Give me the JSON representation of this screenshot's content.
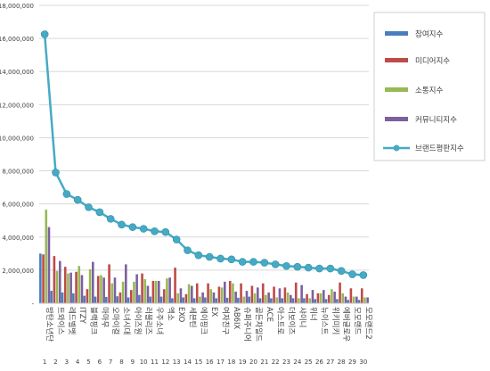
{
  "chart_data": {
    "type": "bar",
    "ylim": [
      0,
      18000000
    ],
    "y_ticks": [
      "-",
      "2,000,000",
      "4,000,000",
      "6,000,000",
      "8,000,000",
      "10,000,000",
      "12,000,000",
      "14,000,000",
      "16,000,000",
      "18,000,000"
    ],
    "y_tick_values": [
      0,
      2000000,
      4000000,
      6000000,
      8000000,
      10000000,
      12000000,
      14000000,
      16000000,
      18000000
    ],
    "grid": true,
    "legend_position": "right",
    "categories": [
      "방탄소년단",
      "트와이스",
      "레드벨벳",
      "ITZY",
      "블랙핑크",
      "마마무",
      "오마이걸",
      "소녀시대",
      "아이즈원",
      "러블리즈",
      "우주소녀",
      "엑소",
      "EXO",
      "세븐틴",
      "에이핑크",
      "EX",
      "여자친구",
      "AB6IX",
      "슈퍼주니어",
      "골든차일드",
      "ACE",
      "아스트로",
      "더보이즈",
      "샤이니",
      "위너",
      "뉴이스트",
      "위키미키",
      "에버글로우",
      "모모랜드",
      "모모랜드2"
    ],
    "indices": [
      "1",
      "2",
      "3",
      "4",
      "5",
      "6",
      "7",
      "8",
      "9",
      "10",
      "11",
      "12",
      "13",
      "14",
      "15",
      "16",
      "17",
      "18",
      "19",
      "20",
      "21",
      "22",
      "23",
      "24",
      "25",
      "26",
      "27",
      "28",
      "29",
      "30"
    ],
    "series": [
      {
        "name": "참여지수",
        "type": "bar",
        "color": "#4a7ebb",
        "values": [
          3000000,
          750000,
          650000,
          600000,
          450000,
          400000,
          380000,
          420000,
          350000,
          500000,
          400000,
          400000,
          300000,
          350000,
          300000,
          350000,
          300000,
          330000,
          330000,
          400000,
          300000,
          300000,
          300000,
          300000,
          300000,
          250000,
          250000,
          250000,
          200000,
          200000
        ]
      },
      {
        "name": "미디어지수",
        "type": "bar",
        "color": "#be4b48",
        "values": [
          2950000,
          2850000,
          2200000,
          1900000,
          850000,
          1650000,
          2350000,
          650000,
          800000,
          1800000,
          1350000,
          850000,
          2150000,
          550000,
          1200000,
          1200000,
          1000000,
          1350000,
          1200000,
          1050000,
          1200000,
          1000000,
          950000,
          1250000,
          550000,
          600000,
          500000,
          1250000,
          900000,
          900000
        ]
      },
      {
        "name": "소통지수",
        "type": "bar",
        "color": "#98b954",
        "values": [
          5650000,
          1950000,
          1800000,
          2250000,
          2050000,
          1700000,
          1200000,
          1300000,
          1300000,
          1450000,
          1350000,
          1500000,
          600000,
          1150000,
          400000,
          850000,
          950000,
          1200000,
          400000,
          600000,
          500000,
          350000,
          650000,
          300000,
          300000,
          600000,
          850000,
          600000,
          400000,
          350000
        ]
      },
      {
        "name": "커뮤니티지수",
        "type": "bar",
        "color": "#7d60a0",
        "values": [
          4600000,
          2550000,
          1850000,
          1700000,
          2500000,
          1550000,
          1550000,
          2350000,
          1750000,
          1050000,
          1350000,
          1550000,
          900000,
          1050000,
          650000,
          650000,
          1300000,
          700000,
          750000,
          950000,
          650000,
          900000,
          500000,
          1100000,
          800000,
          800000,
          700000,
          400000,
          400000,
          350000
        ]
      },
      {
        "name": "브랜드평판지수",
        "type": "line",
        "color": "#46aac5",
        "values": [
          16250000,
          7900000,
          6600000,
          6250000,
          5800000,
          5500000,
          5100000,
          4750000,
          4600000,
          4500000,
          4350000,
          4300000,
          3850000,
          3200000,
          2900000,
          2800000,
          2700000,
          2650000,
          2500000,
          2500000,
          2450000,
          2350000,
          2250000,
          2200000,
          2150000,
          2100000,
          2100000,
          1950000,
          1750000,
          1700000
        ]
      }
    ]
  }
}
